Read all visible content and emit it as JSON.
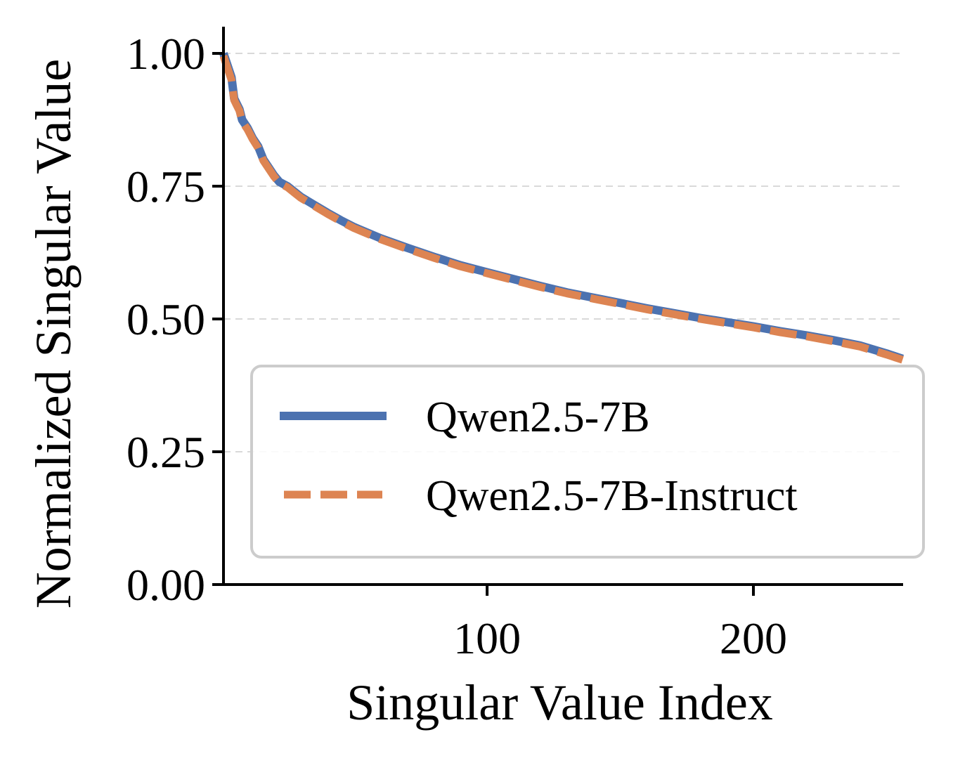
{
  "chart_data": {
    "type": "line",
    "title": "",
    "xlabel": "Singular Value Index",
    "ylabel": "Normalized Singular Value",
    "xlim": [
      1,
      256
    ],
    "ylim": [
      0,
      1.05
    ],
    "xticks": [
      100,
      200
    ],
    "xtick_labels": [
      "100",
      "200"
    ],
    "yticks": [
      0,
      0.25,
      0.5,
      0.75,
      1.0
    ],
    "ytick_labels": [
      "0.00",
      "0.25",
      "0.50",
      "0.75",
      "1.00"
    ],
    "grid": "horizontal dashed",
    "legend_position": "lower-right",
    "series": [
      {
        "name": "Qwen2.5-7B",
        "color": "#4c72b0",
        "style": "solid",
        "x": [
          1,
          2,
          3,
          4,
          5,
          6,
          7,
          8,
          10,
          12,
          14,
          16,
          18,
          20,
          22,
          25,
          28,
          30,
          35,
          40,
          45,
          50,
          60,
          70,
          80,
          90,
          100,
          110,
          120,
          130,
          140,
          150,
          160,
          170,
          180,
          190,
          200,
          210,
          220,
          230,
          240,
          250,
          256
        ],
        "y": [
          1.0,
          0.985,
          0.97,
          0.955,
          0.915,
          0.905,
          0.895,
          0.875,
          0.86,
          0.84,
          0.825,
          0.8,
          0.785,
          0.77,
          0.758,
          0.75,
          0.738,
          0.73,
          0.715,
          0.7,
          0.686,
          0.673,
          0.652,
          0.634,
          0.617,
          0.601,
          0.588,
          0.575,
          0.562,
          0.55,
          0.54,
          0.53,
          0.52,
          0.511,
          0.502,
          0.494,
          0.486,
          0.477,
          0.469,
          0.46,
          0.45,
          0.435,
          0.425
        ]
      },
      {
        "name": "Qwen2.5-7B-Instruct",
        "color": "#dd8452",
        "style": "dashed",
        "x": [
          1,
          2,
          3,
          4,
          5,
          6,
          7,
          8,
          10,
          12,
          14,
          16,
          18,
          20,
          22,
          25,
          28,
          30,
          35,
          40,
          45,
          50,
          60,
          70,
          80,
          90,
          100,
          110,
          120,
          130,
          140,
          150,
          160,
          170,
          180,
          190,
          200,
          210,
          220,
          230,
          240,
          250,
          256
        ],
        "y": [
          0.995,
          0.98,
          0.965,
          0.95,
          0.912,
          0.902,
          0.892,
          0.872,
          0.857,
          0.838,
          0.822,
          0.798,
          0.783,
          0.768,
          0.756,
          0.748,
          0.736,
          0.728,
          0.713,
          0.698,
          0.684,
          0.671,
          0.65,
          0.632,
          0.615,
          0.599,
          0.586,
          0.573,
          0.56,
          0.548,
          0.538,
          0.528,
          0.518,
          0.509,
          0.5,
          0.492,
          0.484,
          0.475,
          0.467,
          0.458,
          0.448,
          0.433,
          0.423
        ]
      }
    ]
  }
}
